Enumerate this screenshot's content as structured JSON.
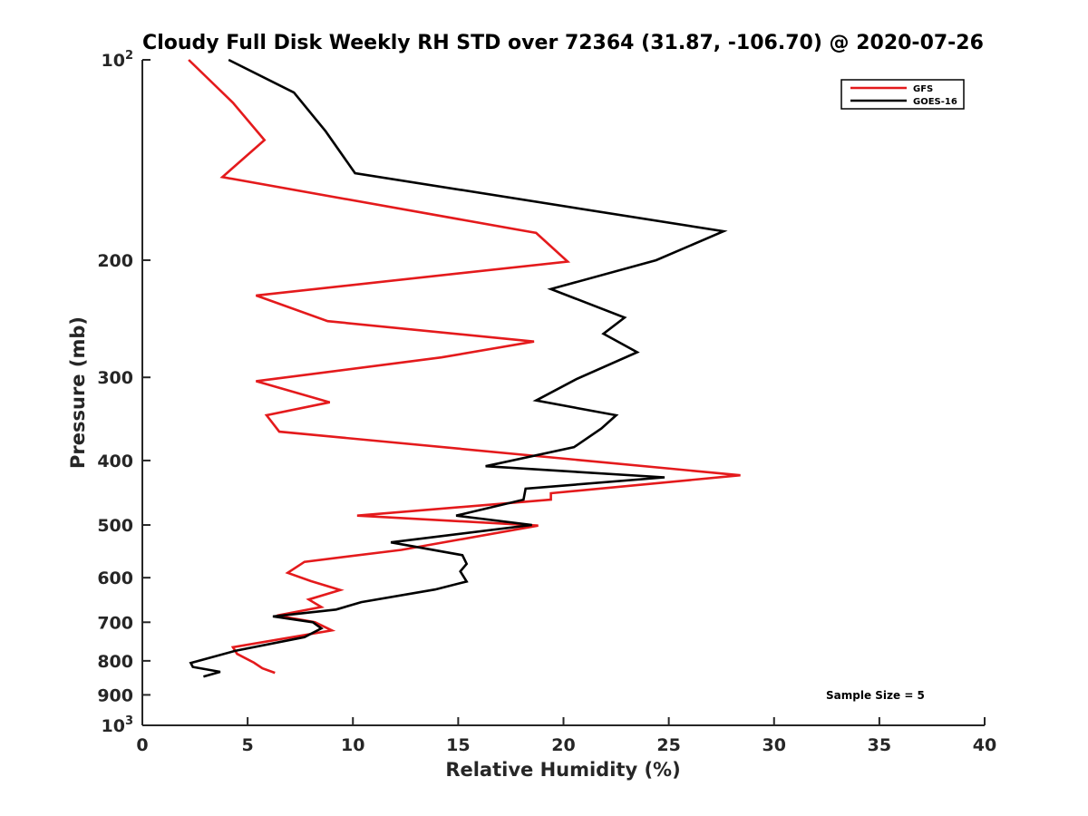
{
  "chart_data": {
    "type": "line",
    "title": "Cloudy Full Disk Weekly RH STD over 72364 (31.87, -106.70) @ 2020-07-26",
    "xlabel": "Relative Humidity (%)",
    "ylabel": "Pressure (mb)",
    "xlim": [
      0,
      40
    ],
    "ylim": [
      100,
      1000
    ],
    "y_scale": "log",
    "y_reversed": true,
    "x_ticks": [
      0,
      5,
      10,
      15,
      20,
      25,
      30,
      35,
      40
    ],
    "y_ticks": [
      {
        "value": 100,
        "base": "10",
        "exp": "2"
      },
      {
        "value": 200,
        "label": "200"
      },
      {
        "value": 300,
        "label": "300"
      },
      {
        "value": 400,
        "label": "400"
      },
      {
        "value": 500,
        "label": "500"
      },
      {
        "value": 600,
        "label": "600"
      },
      {
        "value": 700,
        "label": "700"
      },
      {
        "value": 800,
        "label": "800"
      },
      {
        "value": 900,
        "label": "900"
      },
      {
        "value": 1000,
        "base": "10",
        "exp": "3"
      }
    ],
    "grid": false,
    "legend_position": "top-right",
    "annotation": "Sample Size = 5",
    "series": [
      {
        "name": "GFS",
        "color": "#e41a1c",
        "points": [
          [
            2.2,
            100
          ],
          [
            4.3,
            116
          ],
          [
            5.8,
            132
          ],
          [
            3.8,
            150
          ],
          [
            18.7,
            182
          ],
          [
            20.2,
            201
          ],
          [
            5.4,
            226
          ],
          [
            8.8,
            247
          ],
          [
            18.6,
            265
          ],
          [
            14.2,
            280
          ],
          [
            5.4,
            304
          ],
          [
            8.9,
            327
          ],
          [
            5.9,
            342
          ],
          [
            6.5,
            362
          ],
          [
            28.4,
            421
          ],
          [
            19.4,
            448
          ],
          [
            19.4,
            458
          ],
          [
            10.2,
            484
          ],
          [
            18.8,
            501
          ],
          [
            12.3,
            545
          ],
          [
            7.7,
            568
          ],
          [
            6.9,
            590
          ],
          [
            8.0,
            607
          ],
          [
            9.4,
            626
          ],
          [
            7.9,
            647
          ],
          [
            8.5,
            664
          ],
          [
            6.4,
            684
          ],
          [
            8.2,
            700
          ],
          [
            9.0,
            720
          ],
          [
            4.3,
            763
          ],
          [
            4.5,
            781
          ],
          [
            5.3,
            805
          ],
          [
            5.7,
            821
          ],
          [
            6.3,
            834
          ]
        ]
      },
      {
        "name": "GOES-16",
        "color": "#000000",
        "points": [
          [
            4.1,
            100
          ],
          [
            7.2,
            112
          ],
          [
            8.7,
            128
          ],
          [
            10.1,
            148
          ],
          [
            27.6,
            181
          ],
          [
            24.4,
            200
          ],
          [
            19.4,
            221
          ],
          [
            22.9,
            244
          ],
          [
            21.9,
            258
          ],
          [
            23.5,
            275
          ],
          [
            20.6,
            302
          ],
          [
            18.7,
            325
          ],
          [
            22.5,
            342
          ],
          [
            21.8,
            358
          ],
          [
            20.5,
            382
          ],
          [
            16.3,
            408
          ],
          [
            24.8,
            424
          ],
          [
            18.2,
            441
          ],
          [
            18.1,
            458
          ],
          [
            14.9,
            484
          ],
          [
            18.5,
            500
          ],
          [
            11.8,
            531
          ],
          [
            15.2,
            555
          ],
          [
            15.4,
            572
          ],
          [
            15.1,
            587
          ],
          [
            15.4,
            608
          ],
          [
            13.9,
            625
          ],
          [
            10.4,
            653
          ],
          [
            9.2,
            670
          ],
          [
            6.2,
            686
          ],
          [
            8.1,
            700
          ],
          [
            8.5,
            715
          ],
          [
            7.7,
            737
          ],
          [
            4.4,
            773
          ],
          [
            2.3,
            806
          ],
          [
            2.4,
            817
          ],
          [
            3.7,
            831
          ],
          [
            2.9,
            845
          ]
        ]
      }
    ]
  }
}
